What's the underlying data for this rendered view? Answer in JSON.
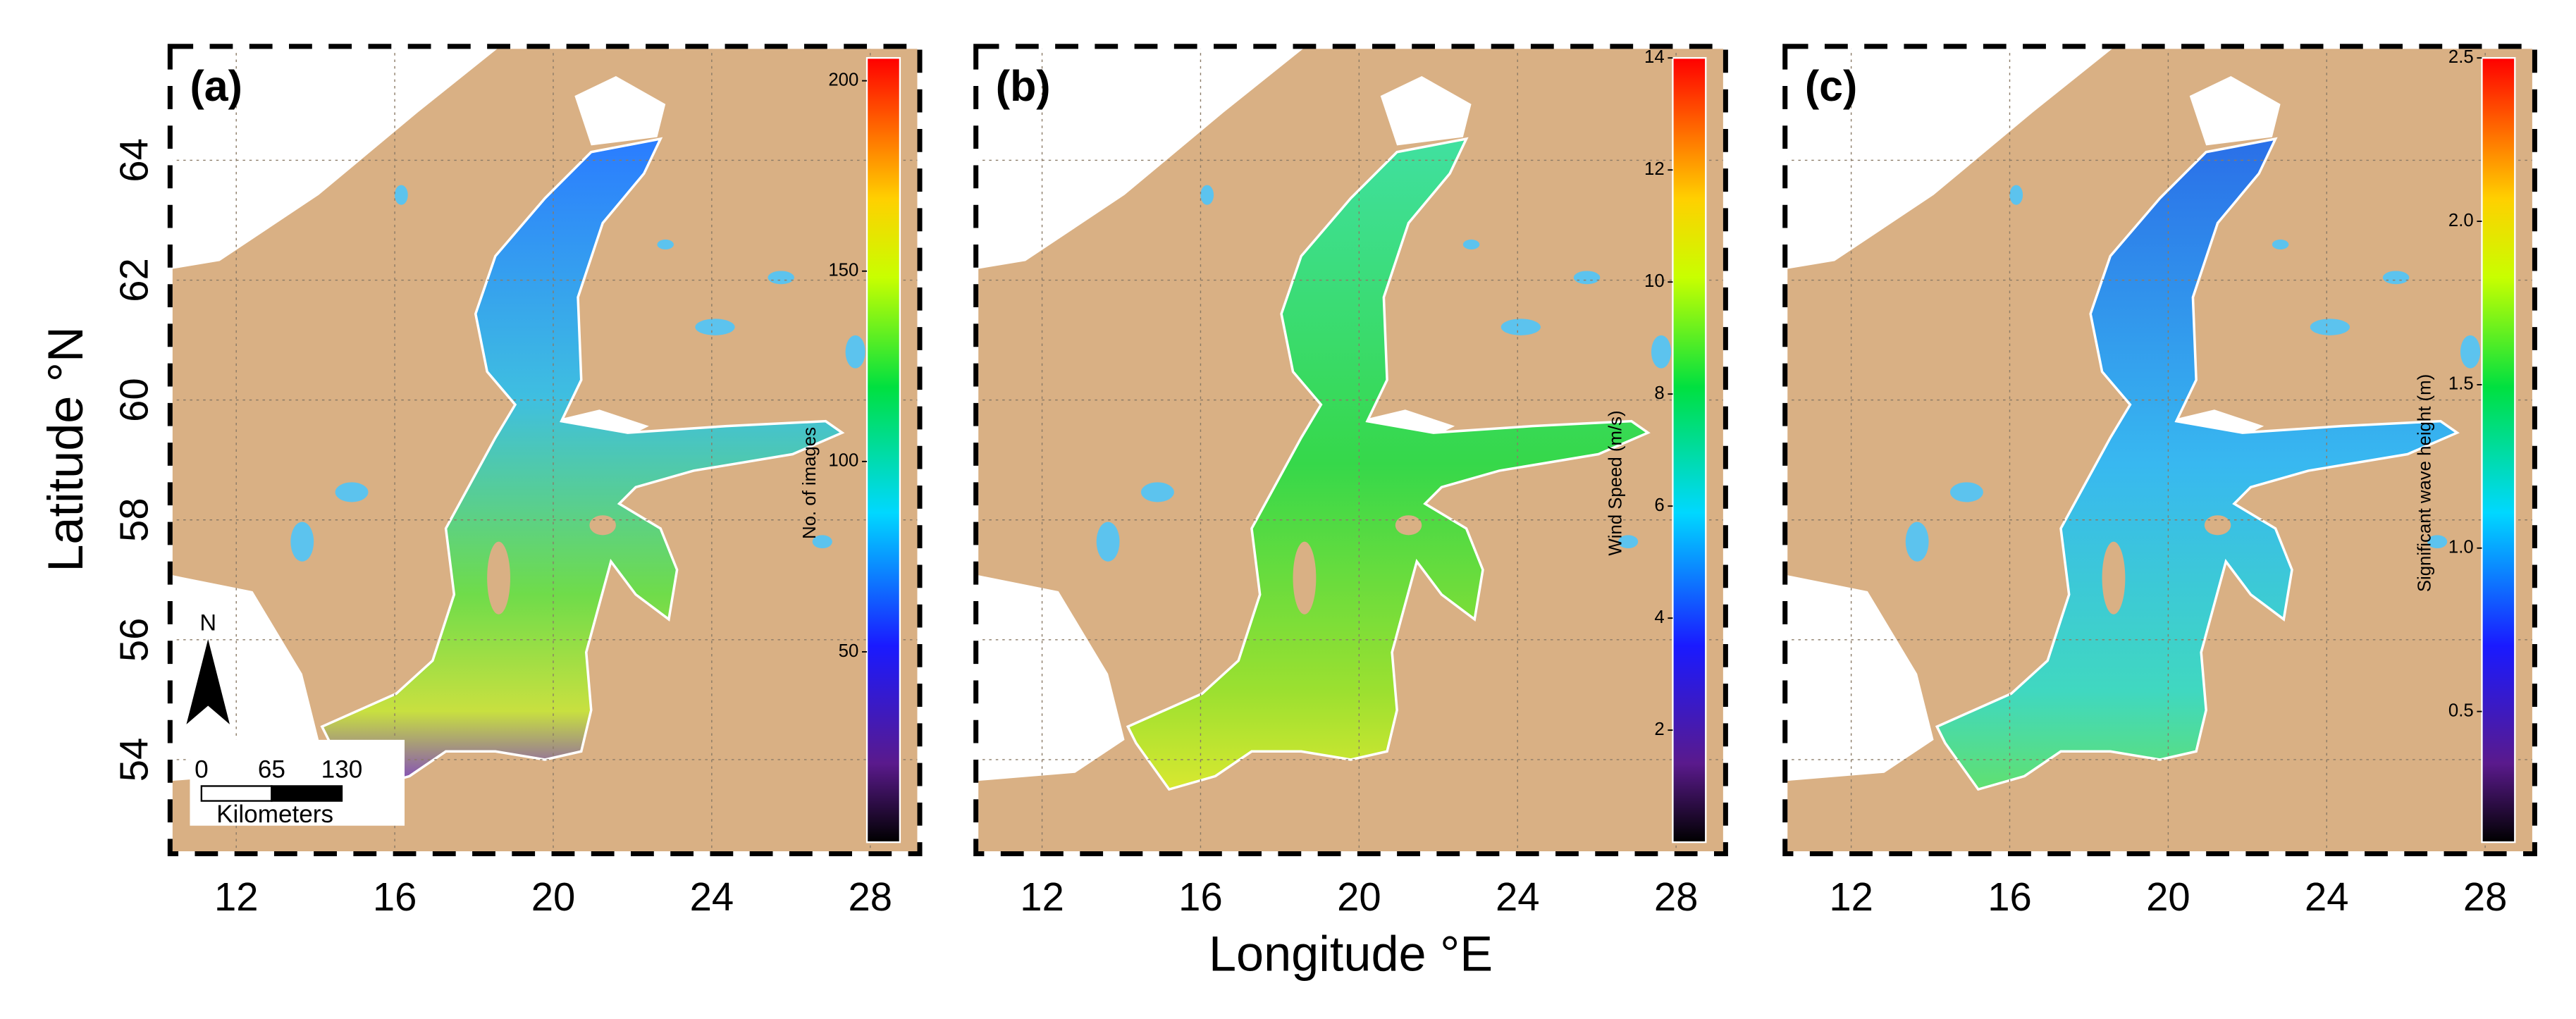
{
  "figure": {
    "y_label": "Latitude °N",
    "x_label": "Longitude °E",
    "panels": [
      {
        "label": "(a)",
        "xlim": [
          10.33,
          29.25
        ],
        "ylim": [
          52.43,
          65.9
        ],
        "xticks": [
          12,
          16,
          20,
          24,
          28
        ],
        "yticks": [
          54,
          56,
          58,
          60,
          62,
          64
        ],
        "colorbar": {
          "label": "No. of images",
          "lim": [
            0,
            206
          ],
          "ticks": [
            50,
            100,
            150,
            200
          ]
        }
      },
      {
        "label": "(b)",
        "xlim": [
          10.33,
          29.25
        ],
        "ylim": [
          52.43,
          65.9
        ],
        "xticks": [
          12,
          16,
          20,
          24,
          28
        ],
        "yticks": [
          54,
          56,
          58,
          60,
          62,
          64
        ],
        "colorbar": {
          "label": "Wind Speed (m/s)",
          "lim": [
            0,
            14
          ],
          "ticks": [
            2,
            4,
            6,
            8,
            10,
            12,
            14
          ]
        }
      },
      {
        "label": "(c)",
        "xlim": [
          10.33,
          29.25
        ],
        "ylim": [
          52.43,
          65.9
        ],
        "xticks": [
          12,
          16,
          20,
          24,
          28
        ],
        "yticks": [
          54,
          56,
          58,
          60,
          62,
          64
        ],
        "colorbar": {
          "label": "Significant wave height (m)",
          "lim": [
            0.1,
            2.5
          ],
          "ticks": [
            0.5,
            {
              "value": 1,
              "label": "1.0"
            },
            1.5,
            {
              "value": 2,
              "label": "2.0"
            },
            2.5
          ]
        }
      }
    ]
  },
  "scale_bar": {
    "north": "N",
    "ticks": [
      0,
      65,
      130
    ],
    "unit": "Kilometers"
  }
}
